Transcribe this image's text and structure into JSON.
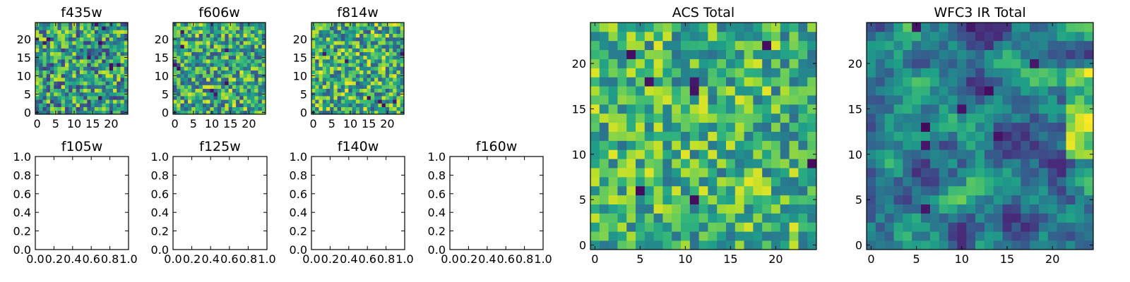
{
  "chart_data": [
    {
      "type": "heatmap",
      "title": "f435w",
      "size": 25,
      "seed": 11,
      "mean": 0.55,
      "spread": 0.38,
      "smooth": 0,
      "n_dark": 10,
      "xticks": [
        0,
        5,
        10,
        15,
        20
      ],
      "yticks": [
        0,
        5,
        10,
        15,
        20
      ],
      "xlim": [
        -0.5,
        24.5
      ],
      "ylim": [
        -0.5,
        24.5
      ]
    },
    {
      "type": "heatmap",
      "title": "f606w",
      "size": 25,
      "seed": 23,
      "mean": 0.6,
      "spread": 0.36,
      "smooth": 0,
      "n_dark": 8,
      "xticks": [
        0,
        5,
        10,
        15,
        20
      ],
      "yticks": [
        0,
        5,
        10,
        15,
        20
      ],
      "xlim": [
        -0.5,
        24.5
      ],
      "ylim": [
        -0.5,
        24.5
      ]
    },
    {
      "type": "heatmap",
      "title": "f814w",
      "size": 25,
      "seed": 37,
      "mean": 0.62,
      "spread": 0.36,
      "smooth": 0,
      "n_dark": 7,
      "xticks": [
        0,
        5,
        10,
        15,
        20
      ],
      "yticks": [
        0,
        5,
        10,
        15,
        20
      ],
      "xlim": [
        -0.5,
        24.5
      ],
      "ylim": [
        -0.5,
        24.5
      ]
    },
    {
      "type": "empty",
      "title": "f105w",
      "xticks": [
        "0.0",
        "0.2",
        "0.4",
        "0.6",
        "0.8",
        "1.0"
      ],
      "yticks": [
        "0.0",
        "0.2",
        "0.4",
        "0.6",
        "0.8",
        "1.0"
      ],
      "xlim": [
        0,
        1
      ],
      "ylim": [
        0,
        1
      ]
    },
    {
      "type": "empty",
      "title": "f125w",
      "xticks": [
        "0.0",
        "0.2",
        "0.4",
        "0.6",
        "0.8",
        "1.0"
      ],
      "yticks": [
        "0.0",
        "0.2",
        "0.4",
        "0.6",
        "0.8",
        "1.0"
      ],
      "xlim": [
        0,
        1
      ],
      "ylim": [
        0,
        1
      ]
    },
    {
      "type": "empty",
      "title": "f140w",
      "xticks": [
        "0.0",
        "0.2",
        "0.4",
        "0.6",
        "0.8",
        "1.0"
      ],
      "yticks": [
        "0.0",
        "0.2",
        "0.4",
        "0.6",
        "0.8",
        "1.0"
      ],
      "xlim": [
        0,
        1
      ],
      "ylim": [
        0,
        1
      ]
    },
    {
      "type": "empty",
      "title": "f160w",
      "xticks": [
        "0.0",
        "0.2",
        "0.4",
        "0.6",
        "0.8",
        "1.0"
      ],
      "yticks": [
        "0.0",
        "0.2",
        "0.4",
        "0.6",
        "0.8",
        "1.0"
      ],
      "xlim": [
        0,
        1
      ],
      "ylim": [
        0,
        1
      ]
    },
    {
      "type": "heatmap",
      "title": "ACS Total",
      "size": 25,
      "seed": 53,
      "mean": 0.66,
      "spread": 0.3,
      "smooth": 0,
      "n_dark": 8,
      "xticks": [
        0,
        5,
        10,
        15,
        20
      ],
      "yticks": [
        0,
        5,
        10,
        15,
        20
      ],
      "xlim": [
        -0.5,
        24.5
      ],
      "ylim": [
        -0.5,
        24.5
      ]
    },
    {
      "type": "heatmap",
      "title": "WFC3 IR Total",
      "size": 25,
      "seed": 71,
      "mean": 0.42,
      "spread": 0.36,
      "smooth": 2,
      "n_dark": 9,
      "bright_right": true,
      "xticks": [
        0,
        5,
        10,
        15,
        20
      ],
      "yticks": [
        0,
        5,
        10,
        15,
        20
      ],
      "xlim": [
        -0.5,
        24.5
      ],
      "ylim": [
        -0.5,
        24.5
      ]
    }
  ],
  "colormap": "viridis",
  "colors": {
    "axis": "#000000",
    "background": "#ffffff"
  }
}
